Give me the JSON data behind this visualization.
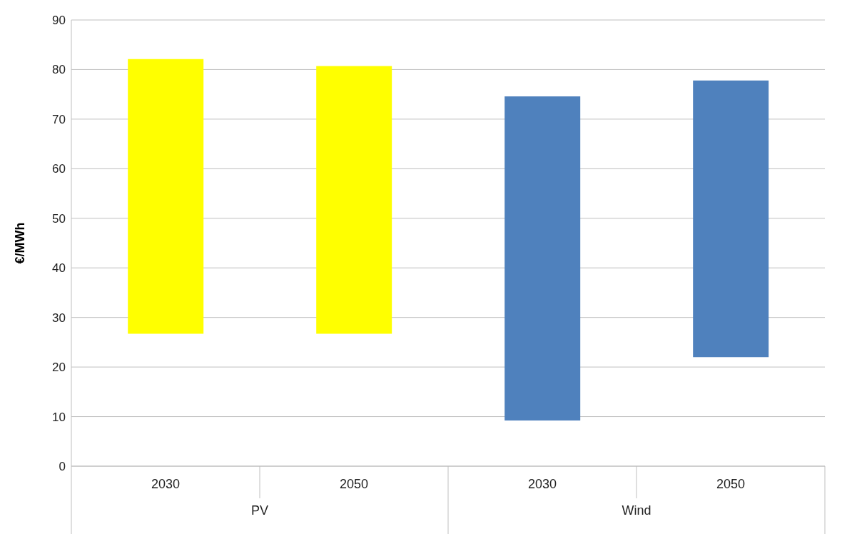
{
  "chart_data": {
    "type": "bar",
    "ylabel": "€/MWh",
    "categories": [
      "2030",
      "2050",
      "2030",
      "2050"
    ],
    "values": [
      55.4,
      54.0,
      65.4,
      55.8
    ],
    "colors": [
      "#ffff00",
      "#ffff00",
      "#4f81bd",
      "#4f81bd"
    ],
    "base": [
      26.7,
      26.7,
      9.2,
      22.0
    ],
    "annotations": [
      "PV",
      "Wind"
    ],
    "ylim": [
      0,
      90
    ],
    "yticks": [
      0,
      10,
      20,
      30,
      40,
      50,
      60,
      70,
      80,
      90
    ],
    "grid": "y"
  }
}
